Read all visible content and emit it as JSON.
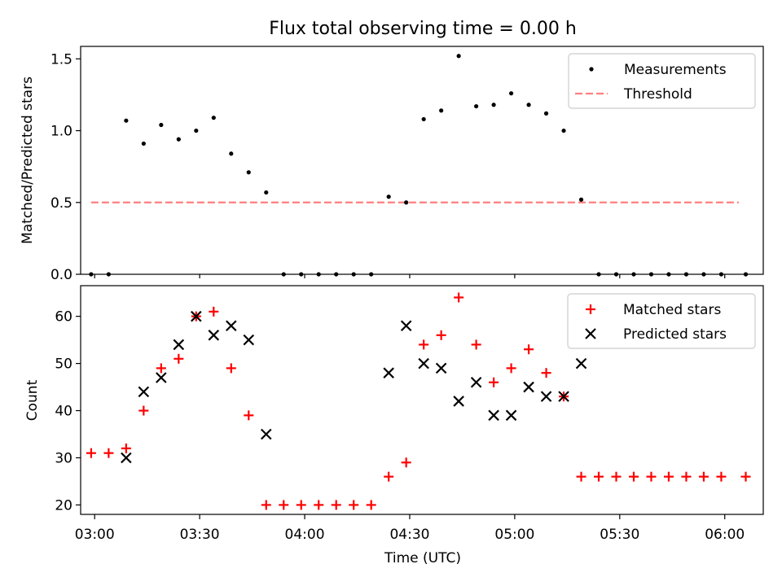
{
  "chart_data": [
    {
      "type": "scatter",
      "title": "Flux total observing time = 0.00 h",
      "xlabel": "",
      "ylabel": "Matched/Predicted stars",
      "ylim": [
        0,
        1.6
      ],
      "yticks": [
        "0.0",
        "0.5",
        "1.0",
        "1.5"
      ],
      "legend_position": "top-right",
      "series": [
        {
          "name": "Measurements",
          "marker": "dot",
          "color": "#000000",
          "x": [
            "02:59",
            "03:04",
            "03:09",
            "03:14",
            "03:19",
            "03:24",
            "03:29",
            "03:34",
            "03:39",
            "03:44",
            "03:49",
            "03:54",
            "03:59",
            "04:04",
            "04:09",
            "04:14",
            "04:19",
            "04:24",
            "04:29",
            "04:34",
            "04:39",
            "04:44",
            "04:49",
            "04:54",
            "04:59",
            "05:04",
            "05:09",
            "05:14",
            "05:19",
            "05:24",
            "05:29",
            "05:34",
            "05:39",
            "05:44",
            "05:49",
            "05:54",
            "05:59",
            "06:06"
          ],
          "y": [
            0.0,
            0.0,
            1.07,
            0.91,
            1.04,
            0.94,
            1.0,
            1.09,
            0.84,
            0.71,
            0.57,
            0.0,
            0.0,
            0.0,
            0.0,
            0.0,
            0.0,
            0.54,
            0.5,
            1.08,
            1.14,
            1.52,
            1.17,
            1.18,
            1.26,
            1.18,
            1.12,
            1.0,
            0.52,
            0.0,
            0.0,
            0.0,
            0.0,
            0.0,
            0.0,
            0.0,
            0.0,
            0.0
          ]
        },
        {
          "name": "Threshold",
          "marker": "dashed-line",
          "color": "#ff7f7f",
          "x": [
            "02:59",
            "06:04"
          ],
          "y": [
            0.5,
            0.5
          ]
        }
      ]
    },
    {
      "type": "scatter",
      "title": "",
      "xlabel": "Time (UTC)",
      "ylabel": "Count",
      "ylim": [
        18,
        66.5
      ],
      "yticks": [
        "20",
        "30",
        "40",
        "50",
        "60"
      ],
      "xticks": [
        "03:00",
        "03:30",
        "04:00",
        "04:30",
        "05:00",
        "05:30",
        "06:00"
      ],
      "legend_position": "top-right",
      "series": [
        {
          "name": "Matched stars",
          "marker": "plus",
          "color": "#ff0000",
          "x": [
            "02:59",
            "03:04",
            "03:09",
            "03:14",
            "03:19",
            "03:24",
            "03:29",
            "03:34",
            "03:39",
            "03:44",
            "03:49",
            "03:54",
            "03:59",
            "04:04",
            "04:09",
            "04:14",
            "04:19",
            "04:24",
            "04:29",
            "04:34",
            "04:39",
            "04:44",
            "04:49",
            "04:54",
            "04:59",
            "05:04",
            "05:09",
            "05:14",
            "05:19",
            "05:24",
            "05:29",
            "05:34",
            "05:39",
            "05:44",
            "05:49",
            "05:54",
            "05:59",
            "06:06"
          ],
          "y": [
            31,
            31,
            32,
            40,
            49,
            51,
            60,
            61,
            49,
            39,
            20,
            20,
            20,
            20,
            20,
            20,
            20,
            26,
            29,
            54,
            56,
            64,
            54,
            46,
            49,
            53,
            48,
            43,
            26,
            26,
            26,
            26,
            26,
            26,
            26,
            26,
            26,
            26
          ]
        },
        {
          "name": "Predicted stars",
          "marker": "x",
          "color": "#000000",
          "x": [
            "03:09",
            "03:14",
            "03:19",
            "03:24",
            "03:29",
            "03:34",
            "03:39",
            "03:44",
            "03:49",
            "04:24",
            "04:29",
            "04:34",
            "04:39",
            "04:44",
            "04:49",
            "04:54",
            "04:59",
            "05:04",
            "05:09",
            "05:14",
            "05:19"
          ],
          "y": [
            30,
            44,
            47,
            54,
            60,
            56,
            58,
            55,
            35,
            48,
            58,
            50,
            49,
            42,
            46,
            39,
            39,
            45,
            43,
            43,
            50
          ]
        }
      ]
    }
  ]
}
